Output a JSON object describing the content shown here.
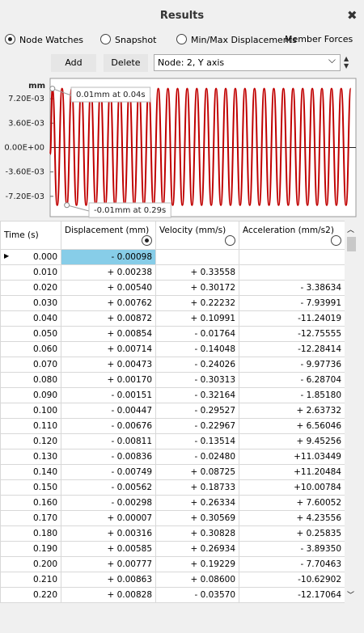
{
  "header": {
    "title": "Results",
    "close": "✖"
  },
  "modes": [
    {
      "label": "Node Watches",
      "selected": true
    },
    {
      "label": "Snapshot",
      "selected": false
    },
    {
      "label": "Min/Max Displacements",
      "selected": false
    },
    {
      "label": "Member Forces",
      "selected": false
    }
  ],
  "buttons": [
    "Add",
    "Delete"
  ],
  "selector": "Node: 2, Y axis",
  "chart_data": {
    "type": "line",
    "y_label": "mm",
    "annotations": [
      "0.01mm at 0.04s",
      "-0.01mm at 0.29s"
    ],
    "xlim": [
      0,
      5.4
    ],
    "ylim": [
      -0.0102,
      0.0102
    ],
    "yticks": [
      {
        "value": 0.0072,
        "label": "7.20E-03"
      },
      {
        "value": 0.0036,
        "label": "3.60E-03"
      },
      {
        "value": 0,
        "label": "0.00E+00"
      },
      {
        "value": -0.0036,
        "label": "-3.60E-03"
      },
      {
        "value": -0.0072,
        "label": "-7.20E-03"
      }
    ],
    "x": [
      0,
      0.04,
      0.125,
      0.21,
      0.295,
      0.38,
      0.465,
      0.55,
      0.635,
      0.72,
      0.805,
      0.89,
      0.975,
      1.06,
      1.145,
      1.23,
      1.315,
      1.4,
      1.485,
      1.57,
      1.655,
      1.74,
      1.825,
      1.91,
      1.995,
      2.08,
      2.165,
      2.25,
      2.335,
      2.42,
      2.505,
      2.59,
      2.675,
      2.76,
      2.845,
      2.93,
      3.015,
      3.1,
      3.185,
      3.27,
      3.355,
      3.44,
      3.525,
      3.61,
      3.695,
      3.78,
      3.865,
      3.95,
      4.035,
      4.12,
      4.205,
      4.29,
      4.375,
      4.46,
      4.545,
      4.63,
      4.715,
      4.8,
      4.885,
      4.97,
      5.055,
      5.14,
      5.225,
      5.31
    ],
    "series": [
      {
        "color": "#c00000",
        "values": [
          -0.00098,
          0.0087,
          -0.0085,
          0.0087,
          -0.0085,
          0.0087,
          -0.0085,
          0.0087,
          -0.0085,
          0.0087,
          -0.0085,
          0.0087,
          -0.0085,
          0.0087,
          -0.0085,
          0.0087,
          -0.0085,
          0.0087,
          -0.0085,
          0.0087,
          -0.0085,
          0.0087,
          -0.0085,
          0.0087,
          -0.0085,
          0.0087,
          -0.0085,
          0.0087,
          -0.0085,
          0.0087,
          -0.0085,
          0.0087,
          -0.0085,
          0.0087,
          -0.0085,
          0.0087,
          -0.0085,
          0.0087,
          -0.0085,
          0.0087,
          -0.0085,
          0.0087,
          -0.0085,
          0.0087,
          -0.0085,
          0.0087,
          -0.0085,
          0.0087,
          -0.0085,
          0.0087,
          -0.0085,
          0.0087,
          -0.0085,
          0.0087,
          -0.0085,
          0.0087,
          -0.0085,
          0.0087,
          -0.0085,
          0.0087,
          -0.0085,
          0.0087,
          -0.0085,
          0.0087
        ]
      }
    ]
  },
  "table": {
    "columns": [
      {
        "label": "Time (s)",
        "radio": null
      },
      {
        "label": "Displacement (mm)",
        "radio": true
      },
      {
        "label": "Velocity (mm/s)",
        "radio": false
      },
      {
        "label": "Acceleration (mm/s2)",
        "radio": false
      }
    ],
    "rows": [
      [
        "0.000",
        "- 0.00098",
        null,
        null
      ],
      [
        "0.010",
        "+ 0.00238",
        "+ 0.33558",
        null
      ],
      [
        "0.020",
        "+ 0.00540",
        "+ 0.30172",
        "- 3.38634"
      ],
      [
        "0.030",
        "+ 0.00762",
        "+ 0.22232",
        "- 7.93991"
      ],
      [
        "0.040",
        "+ 0.00872",
        "+ 0.10991",
        "-11.24019"
      ],
      [
        "0.050",
        "+ 0.00854",
        "- 0.01764",
        "-12.75555"
      ],
      [
        "0.060",
        "+ 0.00714",
        "- 0.14048",
        "-12.28414"
      ],
      [
        "0.070",
        "+ 0.00473",
        "- 0.24026",
        "- 9.97736"
      ],
      [
        "0.080",
        "+ 0.00170",
        "- 0.30313",
        "- 6.28704"
      ],
      [
        "0.090",
        "- 0.00151",
        "- 0.32164",
        "- 1.85180"
      ],
      [
        "0.100",
        "- 0.00447",
        "- 0.29527",
        "+ 2.63732"
      ],
      [
        "0.110",
        "- 0.00676",
        "- 0.22967",
        "+ 6.56046"
      ],
      [
        "0.120",
        "- 0.00811",
        "- 0.13514",
        "+ 9.45256"
      ],
      [
        "0.130",
        "- 0.00836",
        "- 0.02480",
        "+11.03449"
      ],
      [
        "0.140",
        "- 0.00749",
        "+ 0.08725",
        "+11.20484"
      ],
      [
        "0.150",
        "- 0.00562",
        "+ 0.18733",
        "+10.00784"
      ],
      [
        "0.160",
        "- 0.00298",
        "+ 0.26334",
        "+ 7.60052"
      ],
      [
        "0.170",
        "+ 0.00007",
        "+ 0.30569",
        "+ 4.23556"
      ],
      [
        "0.180",
        "+ 0.00316",
        "+ 0.30828",
        "+ 0.25835"
      ],
      [
        "0.190",
        "+ 0.00585",
        "+ 0.26934",
        "- 3.89350"
      ],
      [
        "0.200",
        "+ 0.00777",
        "+ 0.19229",
        "- 7.70463"
      ],
      [
        "0.210",
        "+ 0.00863",
        "+ 0.08600",
        "-10.62902"
      ],
      [
        "0.220",
        "+ 0.00828",
        "- 0.03570",
        "-12.17064"
      ]
    ]
  }
}
